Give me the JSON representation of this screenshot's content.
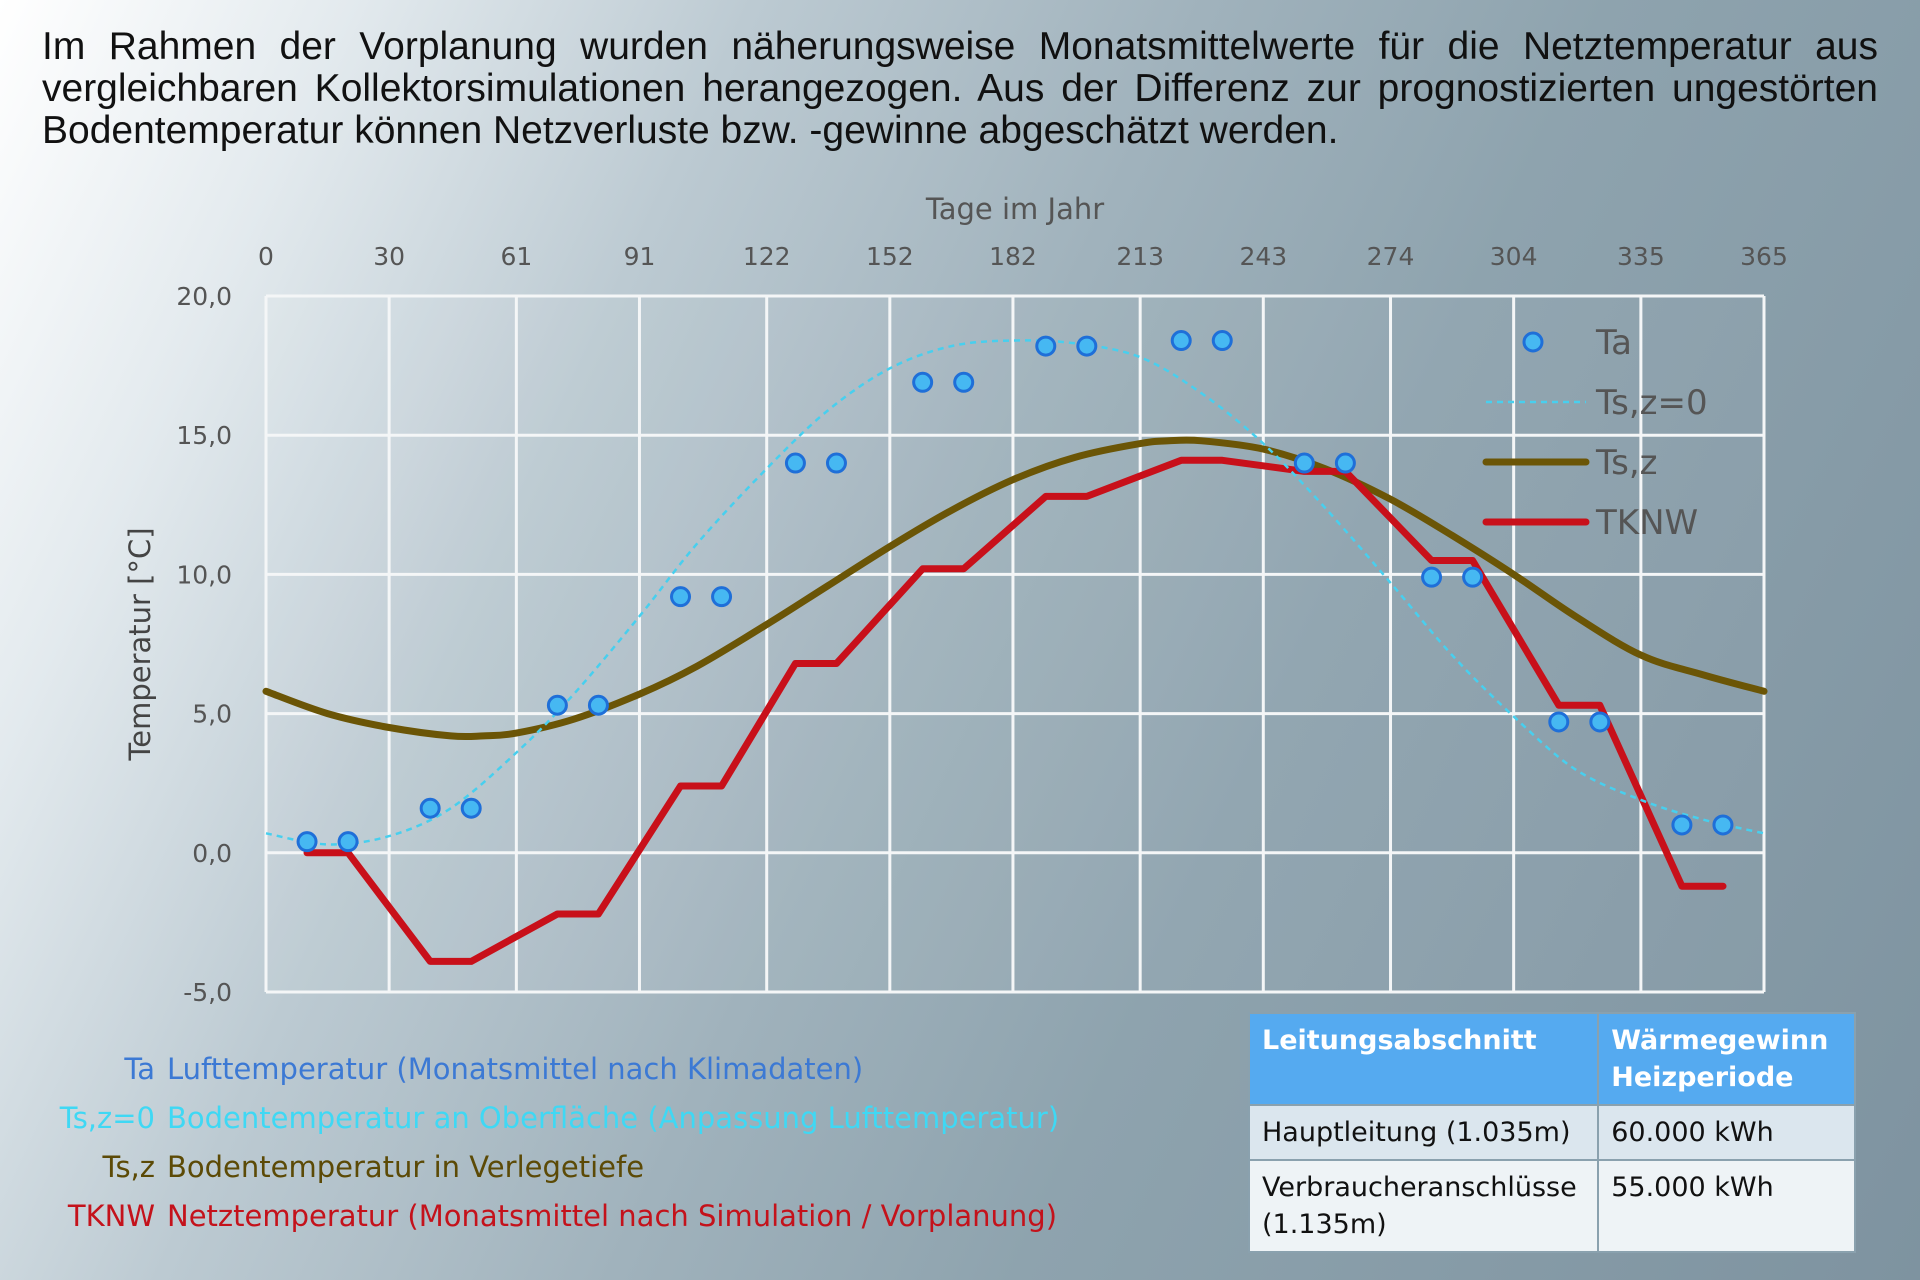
{
  "intro_text": "Im Rahmen der Vorplanung wurden näherungsweise Monatsmittelwerte für die Netztemperatur aus vergleichbaren Kollektorsimulationen herangezogen. Aus der Differenz zur prognostizierten ungestörten Bodentemperatur können Netzverluste bzw. -gewinne abgeschätzt werden.",
  "colors": {
    "ta": "#46b8f2",
    "ta_stroke": "#1f6fd8",
    "ts0": "#48cfee",
    "tsz": "#6b5506",
    "tknw": "#c8101a",
    "grid": "#f4f6f7",
    "axis_text": "#555555"
  },
  "chart_data": {
    "type": "line",
    "xlabel": "Tage im Jahr",
    "ylabel": "Temperatur [°C]",
    "xlim": [
      0,
      365
    ],
    "ylim": [
      -5,
      20
    ],
    "x_ticks": [
      "0",
      "30",
      "61",
      "91",
      "122",
      "152",
      "182",
      "213",
      "243",
      "274",
      "304",
      "335",
      "365"
    ],
    "y_ticks": [
      "20,0",
      "15,0",
      "10,0",
      "5,0",
      "0,0",
      "-5,0"
    ],
    "y_tick_values": [
      20,
      15,
      10,
      5,
      0,
      -5
    ],
    "grid": true,
    "legend_position": "top-right",
    "series": [
      {
        "key": "ta",
        "name": "Ta",
        "style": "markers",
        "x": [
          10,
          20,
          40,
          50,
          71,
          81,
          101,
          111,
          129,
          139,
          160,
          170,
          190,
          200,
          223,
          233,
          253,
          263,
          284,
          294,
          315,
          325,
          345,
          355
        ],
        "y": [
          0.4,
          0.4,
          1.6,
          1.6,
          5.3,
          5.3,
          9.2,
          9.2,
          14.0,
          14.0,
          16.9,
          16.9,
          18.2,
          18.2,
          18.4,
          18.4,
          14.0,
          14.0,
          9.9,
          9.9,
          4.7,
          4.7,
          1.0,
          1.0
        ]
      },
      {
        "key": "ts0",
        "name": "Ts,z=0",
        "style": "dashed",
        "x": [
          0,
          15,
          30,
          45,
          61,
          75,
          91,
          105,
          122,
          137,
          152,
          167,
          182,
          197,
          213,
          228,
          243,
          258,
          274,
          289,
          304,
          319,
          335,
          350,
          365
        ],
        "y": [
          0.7,
          0.3,
          0.6,
          1.6,
          3.6,
          5.7,
          8.5,
          11.1,
          13.8,
          15.9,
          17.4,
          18.2,
          18.4,
          18.3,
          17.8,
          16.5,
          14.7,
          12.4,
          9.7,
          7.1,
          4.9,
          3.0,
          1.9,
          1.2,
          0.7
        ]
      },
      {
        "key": "tsz",
        "name": "Ts,z",
        "style": "line",
        "x": [
          0,
          15,
          30,
          45,
          53,
          61,
          75,
          91,
          105,
          122,
          137,
          152,
          167,
          182,
          197,
          213,
          220,
          228,
          243,
          258,
          274,
          289,
          304,
          319,
          335,
          350,
          365
        ],
        "y": [
          5.8,
          5.0,
          4.5,
          4.2,
          4.2,
          4.3,
          4.8,
          5.7,
          6.7,
          8.2,
          9.6,
          11.0,
          12.3,
          13.4,
          14.2,
          14.7,
          14.8,
          14.8,
          14.5,
          13.8,
          12.7,
          11.4,
          10.0,
          8.5,
          7.1,
          6.4,
          5.8
        ]
      },
      {
        "key": "tknw",
        "name": "TKNW",
        "style": "line",
        "x": [
          10,
          20,
          40,
          50,
          71,
          81,
          101,
          111,
          129,
          139,
          160,
          170,
          190,
          200,
          223,
          233,
          253,
          263,
          284,
          294,
          315,
          325,
          345,
          355
        ],
        "y": [
          0.0,
          0.0,
          -3.9,
          -3.9,
          -2.2,
          -2.2,
          2.4,
          2.4,
          6.8,
          6.8,
          10.2,
          10.2,
          12.8,
          12.8,
          14.1,
          14.1,
          13.7,
          13.7,
          10.5,
          10.5,
          5.3,
          5.3,
          -1.2,
          -1.2
        ]
      }
    ]
  },
  "notes": [
    {
      "key": "ta",
      "code": "Ta",
      "text": "Lufttemperatur (Monatsmittel nach Klimadaten)"
    },
    {
      "key": "ts0",
      "code": "Ts,z=0",
      "text": "Bodentemperatur an Oberfläche (Anpassung Lufttemperatur)"
    },
    {
      "key": "tsz",
      "code": "Ts,z",
      "text": "Bodentemperatur in Verlegetiefe"
    },
    {
      "key": "tknw",
      "code": "TKNW",
      "text": "Netztemperatur (Monatsmittel nach Simulation / Vorplanung)"
    }
  ],
  "table": {
    "headers": [
      "Leitungsabschnitt",
      "Wärmegewinn Heizperiode"
    ],
    "rows": [
      [
        "Hauptleitung (1.035m)",
        "60.000 kWh"
      ],
      [
        "Verbraucheranschlüsse (1.135m)",
        "55.000 kWh"
      ]
    ]
  }
}
